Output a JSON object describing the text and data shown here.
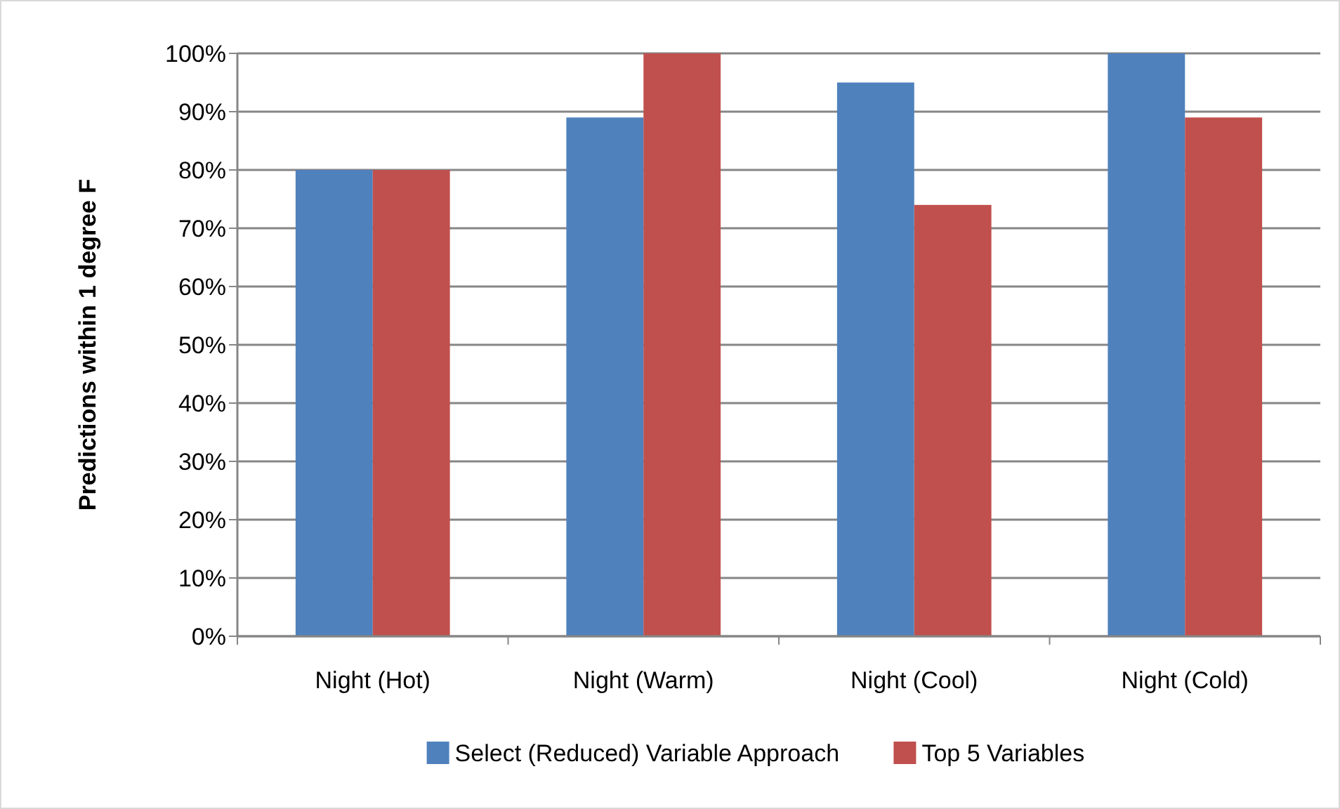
{
  "chart_data": {
    "type": "bar",
    "ylabel": "Predictions within 1 degree F",
    "categories": [
      "Night (Hot)",
      "Night (Warm)",
      "Night (Cool)",
      "Night (Cold)"
    ],
    "series": [
      {
        "name": "Select (Reduced) Variable Approach",
        "color": "#4f81bd",
        "values": [
          80,
          89,
          95,
          100
        ]
      },
      {
        "name": "Top 5 Variables",
        "color": "#c0504d",
        "values": [
          80,
          100,
          74,
          89
        ]
      }
    ],
    "ylim": [
      0,
      100
    ],
    "yticks": [
      {
        "value": 0,
        "label": "0%"
      },
      {
        "value": 10,
        "label": "10%"
      },
      {
        "value": 20,
        "label": "20%"
      },
      {
        "value": 30,
        "label": "30%"
      },
      {
        "value": 40,
        "label": "40%"
      },
      {
        "value": 50,
        "label": "50%"
      },
      {
        "value": 60,
        "label": "60%"
      },
      {
        "value": 70,
        "label": "70%"
      },
      {
        "value": 80,
        "label": "80%"
      },
      {
        "value": 90,
        "label": "90%"
      },
      {
        "value": 100,
        "label": "100%"
      }
    ],
    "grid": "y",
    "legend": "bottom"
  }
}
